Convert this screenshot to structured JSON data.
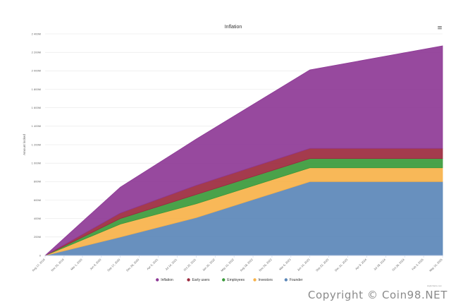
{
  "menu_icon": "hamburger-menu-icon",
  "credits": "Highcharts.com",
  "watermark": "Copyright © Coin98.NET",
  "chart_data": {
    "type": "area",
    "stacked": true,
    "title": "Inflation",
    "xlabel": "",
    "ylabel": "Amount locked",
    "ylim": [
      0,
      2400
    ],
    "y_ticks": [
      0,
      200,
      400,
      600,
      800,
      1000,
      1200,
      1400,
      1600,
      1800,
      2000,
      2200,
      2400
    ],
    "y_tick_labels": [
      "0",
      "200M",
      "400M",
      "600M",
      "800M",
      "1 000M",
      "1 200M",
      "1 400M",
      "1 600M",
      "1 800M",
      "2 000M",
      "2 200M",
      "2 400M"
    ],
    "x_tick_labels": [
      "Aug 17, 2019",
      "Nov 25, 2019",
      "Mar 1, 2020",
      "Jun 9, 2020",
      "Sep 17, 2020",
      "Dec 26, 2020",
      "Apr 5, 2021",
      "Jul 14, 2021",
      "Oct 22, 2021",
      "Jan 30, 2022",
      "May 10, 2022",
      "Aug 18, 2022",
      "Nov 26, 2022",
      "Mar 6, 2023",
      "Jun 14, 2023",
      "Sep 22, 2023",
      "Dec 31, 2023",
      "Apr 9, 2024",
      "Jul 18, 2024",
      "Oct 26, 2024",
      "Feb 3, 2025",
      "May 14, 2025"
    ],
    "x": [
      "Aug 17, 2019",
      "Sep 17, 2020",
      "Oct 22, 2021",
      "Jun 14, 2023",
      "May 14, 2025"
    ],
    "legend_position": "bottom",
    "series": [
      {
        "name": "Inflation",
        "color": "#8e3a96",
        "values": [
          0,
          280,
          500,
          850,
          1110
        ]
      },
      {
        "name": "Early users",
        "color": "#9c2a3e",
        "values": [
          0,
          60,
          100,
          110,
          110
        ]
      },
      {
        "name": "Employees",
        "color": "#3b9a3b",
        "values": [
          0,
          60,
          100,
          100,
          100
        ]
      },
      {
        "name": "Investors",
        "color": "#f7b24a",
        "values": [
          0,
          140,
          150,
          150,
          150
        ]
      },
      {
        "name": "Founder",
        "color": "#5b87b8",
        "values": [
          0,
          200,
          410,
          800,
          800
        ]
      }
    ]
  }
}
